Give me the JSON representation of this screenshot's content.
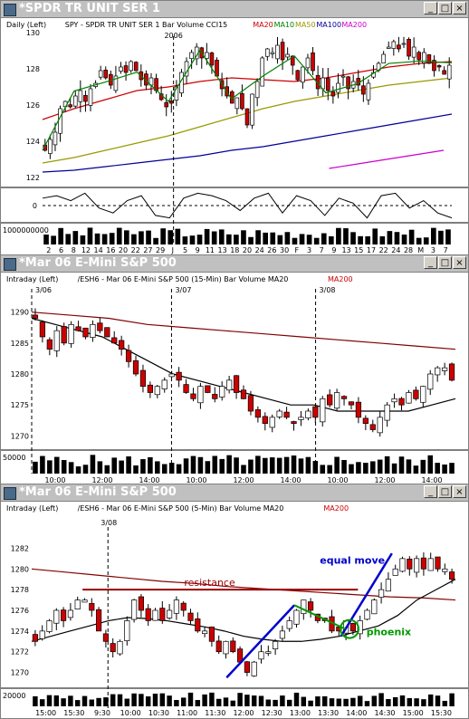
{
  "colors": {
    "ma20": "#cc0000",
    "ma10": "#008000",
    "ma50": "#999900",
    "ma100": "#000099",
    "ma200": "#cc00cc",
    "ma200_dark": "#800000",
    "up": "#ffffff",
    "down": "#cc0000",
    "annot_red": "#990000",
    "annot_blue": "#0000cc",
    "annot_green": "#009900"
  },
  "windows": [
    {
      "title": "*SPDR TR UNIT SER 1",
      "info": [
        {
          "t": "Daily  (Left)",
          "c": "#000"
        },
        {
          "t": "SPY - SPDR TR UNIT SER 1  Bar  Volume  CCI15",
          "c": "#000"
        },
        {
          "t": "MA20",
          "c": "#cc0000"
        },
        {
          "t": "MA10",
          "c": "#008000"
        },
        {
          "t": "MA50",
          "c": "#999900"
        },
        {
          "t": "MA100",
          "c": "#000099"
        },
        {
          "t": "MA200",
          "c": "#cc00cc"
        }
      ],
      "marker": "2006"
    },
    {
      "title": "*Mar 06  E-Mini S&P 500",
      "info": [
        {
          "t": "Intraday  (Left)",
          "c": "#000"
        },
        {
          "t": "/ESH6 - Mar 06  E-Mini S&P 500  (15-Min)  Bar  Volume  MA20",
          "c": "#000"
        },
        {
          "t": "MA200",
          "c": "#cc0000"
        }
      ],
      "dates": [
        "3/06",
        "3/07",
        "3/08"
      ]
    },
    {
      "title": "*Mar 06  E-Mini S&P 500",
      "info": [
        {
          "t": "Intraday  (Left)",
          "c": "#000"
        },
        {
          "t": "/ESH6 - Mar 06  E-Mini S&P 500  (5-Min)  Bar  Volume  MA20",
          "c": "#000"
        },
        {
          "t": "MA200",
          "c": "#cc0000"
        }
      ],
      "dates": [
        "3/08"
      ]
    }
  ],
  "chart_data": [
    {
      "type": "candlestick",
      "title": "SPY - SPDR TR UNIT SER 1",
      "ylim": [
        122,
        130
      ],
      "yticks": [
        122,
        124,
        126,
        128,
        130
      ],
      "xticks": [
        "2",
        "6",
        "8",
        "12",
        "14",
        "16",
        "20",
        "22",
        "27",
        "29",
        "J",
        "5",
        "9",
        "11",
        "13",
        "18",
        "20",
        "24",
        "26",
        "30",
        "F",
        "3",
        "7",
        "9",
        "13",
        "15",
        "17",
        "22",
        "24",
        "28",
        "M",
        "3",
        "7"
      ],
      "close": [
        123.5,
        124.1,
        124.5,
        125.8,
        126.2,
        125.9,
        126.5,
        126.8,
        126.2,
        126.9,
        127.2,
        127.9,
        127.5,
        127.1,
        127.6,
        128.1,
        127.8,
        128.4,
        127.9,
        127.4,
        127.1,
        127.5,
        126.8,
        126.3,
        125.9,
        126.1,
        127.0,
        127.8,
        128.4,
        128.9,
        129.2,
        128.6,
        128.9,
        128.2,
        127.6,
        126.9,
        126.5,
        126.1,
        126.4,
        125.8,
        124.9,
        126.6,
        127.3,
        128.6,
        129.1,
        128.9,
        129.3,
        128.5,
        128.8,
        128.2,
        127.4,
        128.1,
        128.6,
        127.9,
        126.9,
        127.5,
        126.8,
        126.5,
        127.2,
        127.6,
        126.9,
        127.3,
        127.1,
        126.6,
        127.2,
        127.8,
        128.3,
        128.8,
        129.2,
        129.5,
        129.1,
        129.4,
        128.7,
        129.2,
        128.5,
        128.9,
        128.3,
        127.9,
        128.1,
        127.7,
        128.2
      ],
      "ma": {
        "MA20": [
          125.2,
          125.8,
          126.3,
          126.8,
          127.0,
          127.3,
          127.5,
          127.4,
          127.3,
          127.5,
          127.8,
          128.1,
          128.3,
          128.4
        ],
        "MA50": [
          122.8,
          123.1,
          123.5,
          123.9,
          124.3,
          124.8,
          125.3,
          125.8,
          126.2,
          126.5,
          126.8,
          127.1,
          127.3,
          127.5
        ],
        "MA100": [
          122.3,
          122.4,
          122.6,
          122.8,
          123.0,
          123.2,
          123.5,
          123.7,
          124.0,
          124.3,
          124.6,
          124.9,
          125.2,
          125.5
        ],
        "MA200": [
          122.5,
          123.0,
          123.5
        ]
      },
      "cci": [
        60,
        80,
        40,
        100,
        -20,
        -60,
        40,
        80,
        -80,
        -100,
        60,
        100,
        80,
        40,
        -40,
        60,
        100,
        -60,
        80,
        40,
        -80,
        60,
        20,
        -100,
        80,
        100,
        -20,
        40,
        -60,
        -100
      ]
    },
    {
      "type": "candlestick",
      "title": "/ESH6 - Mar 06  E-Mini S&P 500  (15-Min)",
      "ylim": [
        1268,
        1292
      ],
      "yticks": [
        1270,
        1275,
        1280,
        1285,
        1290
      ],
      "xticks": [
        "10:00",
        "12:00",
        "14:00",
        "10:00",
        "12:00",
        "14:00",
        "10:00",
        "12:00",
        "14:00"
      ],
      "close": [
        1289,
        1286,
        1284,
        1287,
        1285,
        1288,
        1287,
        1286,
        1288,
        1287,
        1286,
        1285,
        1284,
        1282,
        1280,
        1278,
        1277,
        1278,
        1279,
        1280,
        1279,
        1277,
        1276,
        1278,
        1277,
        1276,
        1278,
        1279,
        1277,
        1276,
        1274,
        1273,
        1272,
        1273,
        1274,
        1273,
        1272,
        1273,
        1274,
        1273,
        1276,
        1275,
        1277,
        1276,
        1275,
        1273,
        1272,
        1271,
        1273,
        1275,
        1276,
        1275,
        1277,
        1276,
        1278,
        1280,
        1281,
        1281,
        1279
      ],
      "ma": {
        "MA20": [
          1289,
          1288,
          1287,
          1286,
          1284,
          1282,
          1280,
          1279,
          1278,
          1277,
          1276,
          1275,
          1275,
          1274,
          1274,
          1274,
          1274,
          1275,
          1276
        ],
        "MA200": [
          1290,
          1289.5,
          1289,
          1288,
          1287.5,
          1287,
          1286.5,
          1286,
          1285.5,
          1285,
          1284.5,
          1284
        ]
      }
    },
    {
      "type": "candlestick",
      "title": "/ESH6 - Mar 06  E-Mini S&P 500  (5-Min)",
      "ylim": [
        1269,
        1283
      ],
      "yticks": [
        1270,
        1272,
        1274,
        1276,
        1278,
        1280,
        1282
      ],
      "xticks": [
        "15:00",
        "15:30",
        "9:30",
        "10:00",
        "10:30",
        "11:00",
        "11:30",
        "12:00",
        "12:30",
        "13:00",
        "13:30",
        "14:00",
        "14:30",
        "15:00",
        "15:30"
      ],
      "close": [
        1273,
        1274,
        1275,
        1276,
        1275,
        1276,
        1277,
        1277,
        1276,
        1274,
        1273,
        1272,
        1273,
        1275,
        1277,
        1276,
        1275,
        1276,
        1275,
        1276,
        1277,
        1276,
        1275,
        1274,
        1274,
        1273,
        1272,
        1273,
        1272,
        1271,
        1270,
        1271,
        1272,
        1272,
        1273,
        1274,
        1275,
        1276,
        1277,
        1276,
        1275,
        1275,
        1274,
        1274,
        1275,
        1274,
        1275,
        1276,
        1277,
        1278,
        1279,
        1280,
        1281,
        1280,
        1281,
        1280,
        1281,
        1280,
        1280,
        1279
      ],
      "ma": {
        "MA20": [
          1273,
          1273.5,
          1274,
          1274.5,
          1275,
          1275.3,
          1275.2,
          1275,
          1274.7,
          1274.4,
          1274,
          1273.5,
          1273.2,
          1273,
          1273,
          1273.2,
          1273.5,
          1274,
          1274.5,
          1275.5,
          1277,
          1278,
          1279
        ],
        "MA200": [
          1280,
          1279.7,
          1279.4,
          1279.1,
          1278.8,
          1278.6,
          1278.3,
          1278.1,
          1277.9,
          1277.7,
          1277.5,
          1277.3,
          1277.2,
          1277
        ]
      },
      "annotations": [
        "resistance",
        "equal move",
        "phoenix"
      ]
    }
  ],
  "vol_labels": [
    "1000000000",
    "50000",
    "20000"
  ],
  "cci_zero": "0"
}
